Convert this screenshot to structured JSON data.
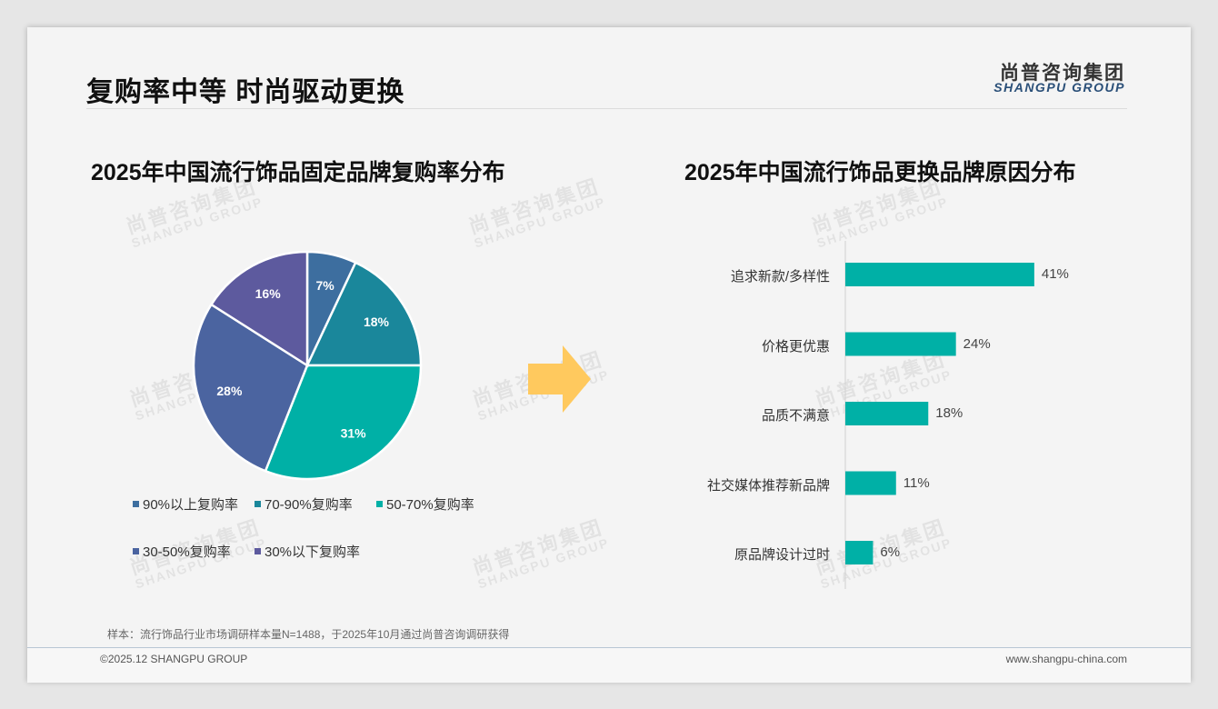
{
  "header": {
    "title": "复购率中等 时尚驱动更换",
    "logo_cn": "尚普咨询集团",
    "logo_en": "SHANGPU GROUP"
  },
  "watermark": {
    "cn": "尚普咨询集团",
    "en": "SHANGPU GROUP"
  },
  "chart_data": [
    {
      "type": "pie",
      "title": "2025年中国流行饰品固定品牌复购率分布",
      "labels": [
        "90%以上复购率",
        "70-90%复购率",
        "50-70%复购率",
        "30-50%复购率",
        "30%以下复购率"
      ],
      "values": [
        7,
        18,
        31,
        28,
        16
      ],
      "data_labels": [
        "7%",
        "18%",
        "31%",
        "28%",
        "16%"
      ],
      "colors": [
        "#3d6e9f",
        "#1a879b",
        "#00b0a6",
        "#4b64a0",
        "#5d5a9e"
      ],
      "legend": "bottom"
    },
    {
      "type": "bar",
      "orientation": "horizontal",
      "title": "2025年中国流行饰品更换品牌原因分布",
      "categories": [
        "追求新款/多样性",
        "价格更优惠",
        "品质不满意",
        "社交媒体推荐新品牌",
        "原品牌设计过时"
      ],
      "values": [
        41,
        24,
        18,
        11,
        6
      ],
      "data_labels": [
        "41%",
        "24%",
        "18%",
        "11%",
        "6%"
      ],
      "color": "#00b0a6"
    }
  ],
  "footer": {
    "note": "样本：流行饰品行业市场调研样本量N=1488，于2025年10月通过尚普咨询调研获得",
    "copyright": "©2025.12 SHANGPU GROUP",
    "url": "www.shangpu-china.com"
  },
  "arrow_color": "#ffc95e"
}
